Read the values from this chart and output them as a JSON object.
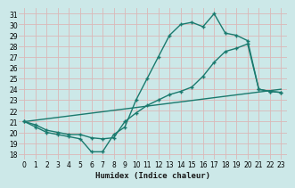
{
  "bg_color": "#cce8e8",
  "grid_color": "#e8c8c8",
  "line_color": "#1a7a6e",
  "line_width": 1.0,
  "marker_size": 2.5,
  "xlim": [
    -0.5,
    23.5
  ],
  "ylim": [
    17.5,
    31.5
  ],
  "xticks": [
    0,
    1,
    2,
    3,
    4,
    5,
    6,
    7,
    8,
    9,
    10,
    11,
    12,
    13,
    14,
    15,
    16,
    17,
    18,
    19,
    20,
    21,
    22,
    23
  ],
  "yticks": [
    18,
    19,
    20,
    21,
    22,
    23,
    24,
    25,
    26,
    27,
    28,
    29,
    30,
    31
  ],
  "xlabel": "Humidex (Indice chaleur)",
  "series1_x": [
    0,
    1,
    2,
    3,
    4,
    5,
    6,
    7,
    8,
    9,
    10,
    11,
    12,
    13,
    14,
    15,
    16,
    17,
    18,
    19,
    20,
    21,
    22,
    23
  ],
  "series1_y": [
    21.0,
    20.5,
    20.0,
    19.8,
    19.6,
    19.4,
    18.2,
    18.2,
    19.8,
    20.5,
    23.0,
    25.0,
    27.0,
    29.0,
    30.0,
    30.2,
    29.8,
    31.0,
    29.2,
    29.0,
    28.5,
    24.0,
    23.8,
    23.7
  ],
  "series2_x": [
    0,
    23
  ],
  "series2_y": [
    21.0,
    24.0
  ],
  "series3_x": [
    0,
    1,
    2,
    3,
    4,
    5,
    6,
    7,
    8,
    9,
    10,
    11,
    12,
    13,
    14,
    15,
    16,
    17,
    18,
    19,
    20,
    21,
    22,
    23
  ],
  "series3_y": [
    21.0,
    20.7,
    20.2,
    20.0,
    19.8,
    19.8,
    19.5,
    19.4,
    19.5,
    21.0,
    21.8,
    22.5,
    23.0,
    23.5,
    23.8,
    24.2,
    25.2,
    26.5,
    27.5,
    27.8,
    28.2,
    24.0,
    23.8,
    23.7
  ]
}
